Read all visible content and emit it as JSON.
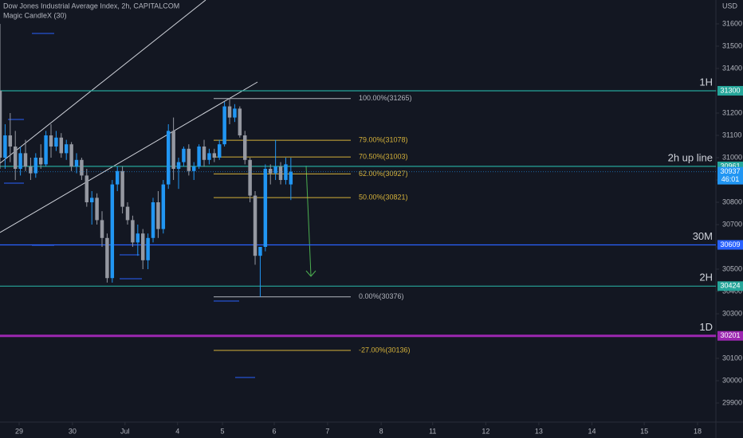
{
  "chart_data": {
    "type": "candlestick",
    "title": "Dow Jones Industrial Average Index, 2h, CAPITALCOM",
    "subtitle": "Magic CandleX (30)",
    "currency": "USD",
    "up_color": "#2196f3",
    "down_color": "#9598a1",
    "x": [
      0,
      1,
      2,
      3,
      4,
      5,
      6,
      7,
      8,
      9,
      10,
      11,
      12,
      13,
      14,
      15,
      16,
      17,
      18,
      19,
      20,
      21,
      22,
      23,
      24,
      25,
      26,
      27,
      28,
      29,
      30,
      31,
      32,
      33,
      34,
      35,
      36,
      37,
      38,
      39,
      40,
      41,
      42,
      43,
      44,
      45,
      46,
      47,
      48,
      49,
      50,
      51,
      52,
      53,
      54,
      55,
      56,
      57
    ],
    "open": [
      31300,
      31000,
      31100,
      31050,
      30950,
      31020,
      30960,
      30930,
      31000,
      30970,
      31100,
      31050,
      31090,
      31020,
      31060,
      30960,
      30990,
      30920,
      30800,
      30820,
      30720,
      30640,
      30460,
      30880,
      30940,
      30780,
      30720,
      30620,
      30660,
      30540,
      30640,
      30800,
      30680,
      30880,
      31120,
      30950,
      30980,
      31040,
      30940,
      30960,
      31050,
      30990,
      31020,
      31000,
      31060,
      31230,
      31180,
      31220,
      31100,
      30990,
      30830,
      30560,
      30600,
      30950,
      30930,
      30960,
      30900,
      30880
    ],
    "high": [
      31600,
      31150,
      31200,
      31120,
      31050,
      31080,
      31000,
      31020,
      31060,
      31120,
      31150,
      31120,
      31110,
      31080,
      31070,
      31020,
      31000,
      30950,
      30850,
      30840,
      30760,
      30660,
      30900,
      30960,
      30960,
      30800,
      30740,
      30700,
      30680,
      30660,
      30820,
      30850,
      30900,
      31150,
      31180,
      31000,
      31050,
      31060,
      30980,
      31060,
      31080,
      31040,
      31040,
      31080,
      31250,
      31265,
      31240,
      31230,
      31120,
      31000,
      30850,
      30600,
      30970,
      30970,
      31080,
      30980,
      31000,
      31000
    ],
    "low": [
      30950,
      30950,
      30980,
      30900,
      30920,
      30940,
      30900,
      30910,
      30950,
      30960,
      31000,
      31030,
      31000,
      30990,
      30940,
      30930,
      30900,
      30780,
      30700,
      30700,
      30600,
      30440,
      30440,
      30850,
      30750,
      30700,
      30600,
      30560,
      30500,
      30500,
      30620,
      30640,
      30660,
      30860,
      30900,
      30860,
      30960,
      30920,
      30900,
      30950,
      30960,
      30970,
      30980,
      30990,
      31050,
      31150,
      31160,
      31090,
      30970,
      30800,
      30520,
      30376,
      30580,
      30880,
      30900,
      30880,
      30880,
      30810
    ],
    "close": [
      31000,
      31100,
      31050,
      30950,
      31020,
      30960,
      30930,
      31000,
      30970,
      31100,
      31050,
      31090,
      31020,
      31060,
      30960,
      30990,
      30920,
      30800,
      30820,
      30720,
      30640,
      30460,
      30880,
      30940,
      30780,
      30720,
      30620,
      30660,
      30540,
      30640,
      30800,
      30680,
      30880,
      31120,
      30950,
      30980,
      31040,
      30940,
      30960,
      31050,
      30990,
      31020,
      31000,
      31060,
      31230,
      31180,
      31220,
      31100,
      30990,
      30830,
      30560,
      30600,
      30950,
      30930,
      30960,
      30900,
      30970,
      30937
    ],
    "xlim": [
      0,
      140.3
    ],
    "xticks": [
      {
        "value": 3.75,
        "label": "29"
      },
      {
        "value": 14.2,
        "label": "30"
      },
      {
        "value": 24.5,
        "label": "Jul"
      },
      {
        "value": 34.8,
        "label": "4"
      },
      {
        "value": 43.6,
        "label": "5"
      },
      {
        "value": 53.75,
        "label": "6"
      },
      {
        "value": 64.2,
        "label": "7"
      },
      {
        "value": 74.7,
        "label": "8"
      },
      {
        "value": 84.8,
        "label": "11"
      },
      {
        "value": 95.2,
        "label": "12"
      },
      {
        "value": 105.6,
        "label": "13"
      },
      {
        "value": 116,
        "label": "14"
      },
      {
        "value": 126.25,
        "label": "15"
      },
      {
        "value": 136.7,
        "label": "18"
      }
    ],
    "ylim": [
      29793,
      31707
    ],
    "yticks": [
      29900,
      30000,
      30100,
      30200,
      30300,
      30400,
      30500,
      30600,
      30700,
      30800,
      30900,
      31000,
      31100,
      31200,
      31300,
      31400,
      31500,
      31600
    ],
    "levels": [
      {
        "name": "1H",
        "value": 31300,
        "color": "#26a69a"
      },
      {
        "name": "2h up line",
        "value": 30961,
        "color": "#26a69a"
      },
      {
        "name": "30M",
        "value": 30609,
        "color": "#2962ff"
      },
      {
        "name": "2H",
        "value": 30424,
        "color": "#26a69a"
      },
      {
        "name": "1D",
        "value": 30201,
        "color": "#9c27b0"
      }
    ],
    "fib": [
      {
        "label": "100.00%(31265)",
        "value": 31265,
        "color": "#b2b5be"
      },
      {
        "label": "79.00%(31078)",
        "value": 31078,
        "color": "#d4b13a"
      },
      {
        "label": "70.50%(31003)",
        "value": 31003,
        "color": "#d4b13a"
      },
      {
        "label": "62.00%(30927)",
        "value": 30927,
        "color": "#d4b13a"
      },
      {
        "label": "50.00%(30821)",
        "value": 30821,
        "color": "#d4b13a"
      },
      {
        "label": "0.00%(30376)",
        "value": 30376,
        "color": "#b2b5be"
      },
      {
        "label": "-27.00%(30136)",
        "value": 30136,
        "color": "#d4b13a"
      }
    ],
    "last_price": {
      "value": 30937,
      "color": "#2196f3",
      "countdown": "46:01"
    }
  }
}
